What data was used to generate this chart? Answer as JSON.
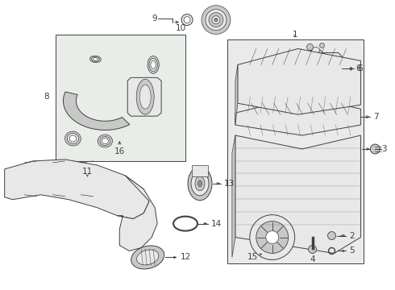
{
  "background_color": "#ffffff",
  "figure_width": 4.9,
  "figure_height": 3.6,
  "dpi": 100,
  "line_color": "#404040",
  "fill_box": "#dde8dd",
  "fill_light": "#e8e8e8",
  "fill_medium": "#c8c8c8",
  "fill_dark": "#909090",
  "fill_white": "#ffffff",
  "label_fontsize": 7.5
}
